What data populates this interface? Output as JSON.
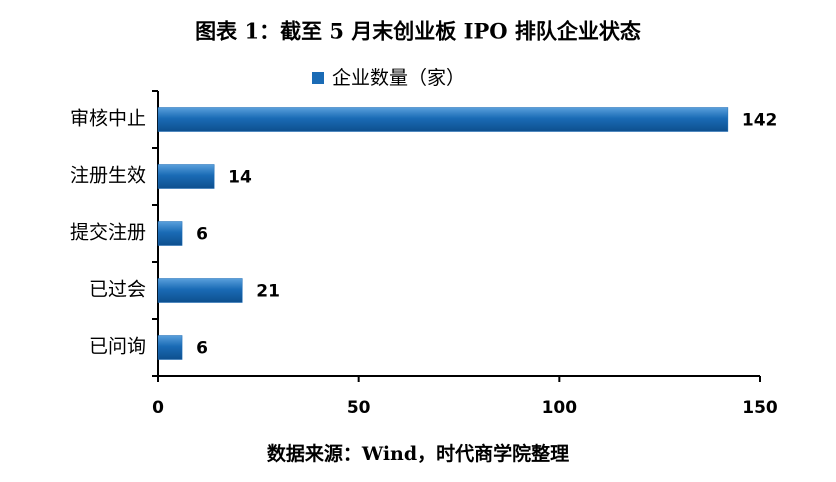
{
  "chart_data": {
    "type": "bar",
    "orientation": "horizontal",
    "title": "图表 1：截至 5 月末创业板 IPO 排队企业状态",
    "categories": [
      "审核中止",
      "注册生效",
      "提交注册",
      "已过会",
      "已问询"
    ],
    "series": [
      {
        "name": "企业数量（家）",
        "color": "#1a6bb5",
        "values": [
          142,
          14,
          6,
          21,
          6
        ]
      }
    ],
    "xlim": [
      0,
      150
    ],
    "xticks": [
      0,
      50,
      100,
      150
    ],
    "legend": "top",
    "source": "数据来源：Wind，时代商学院整理"
  }
}
